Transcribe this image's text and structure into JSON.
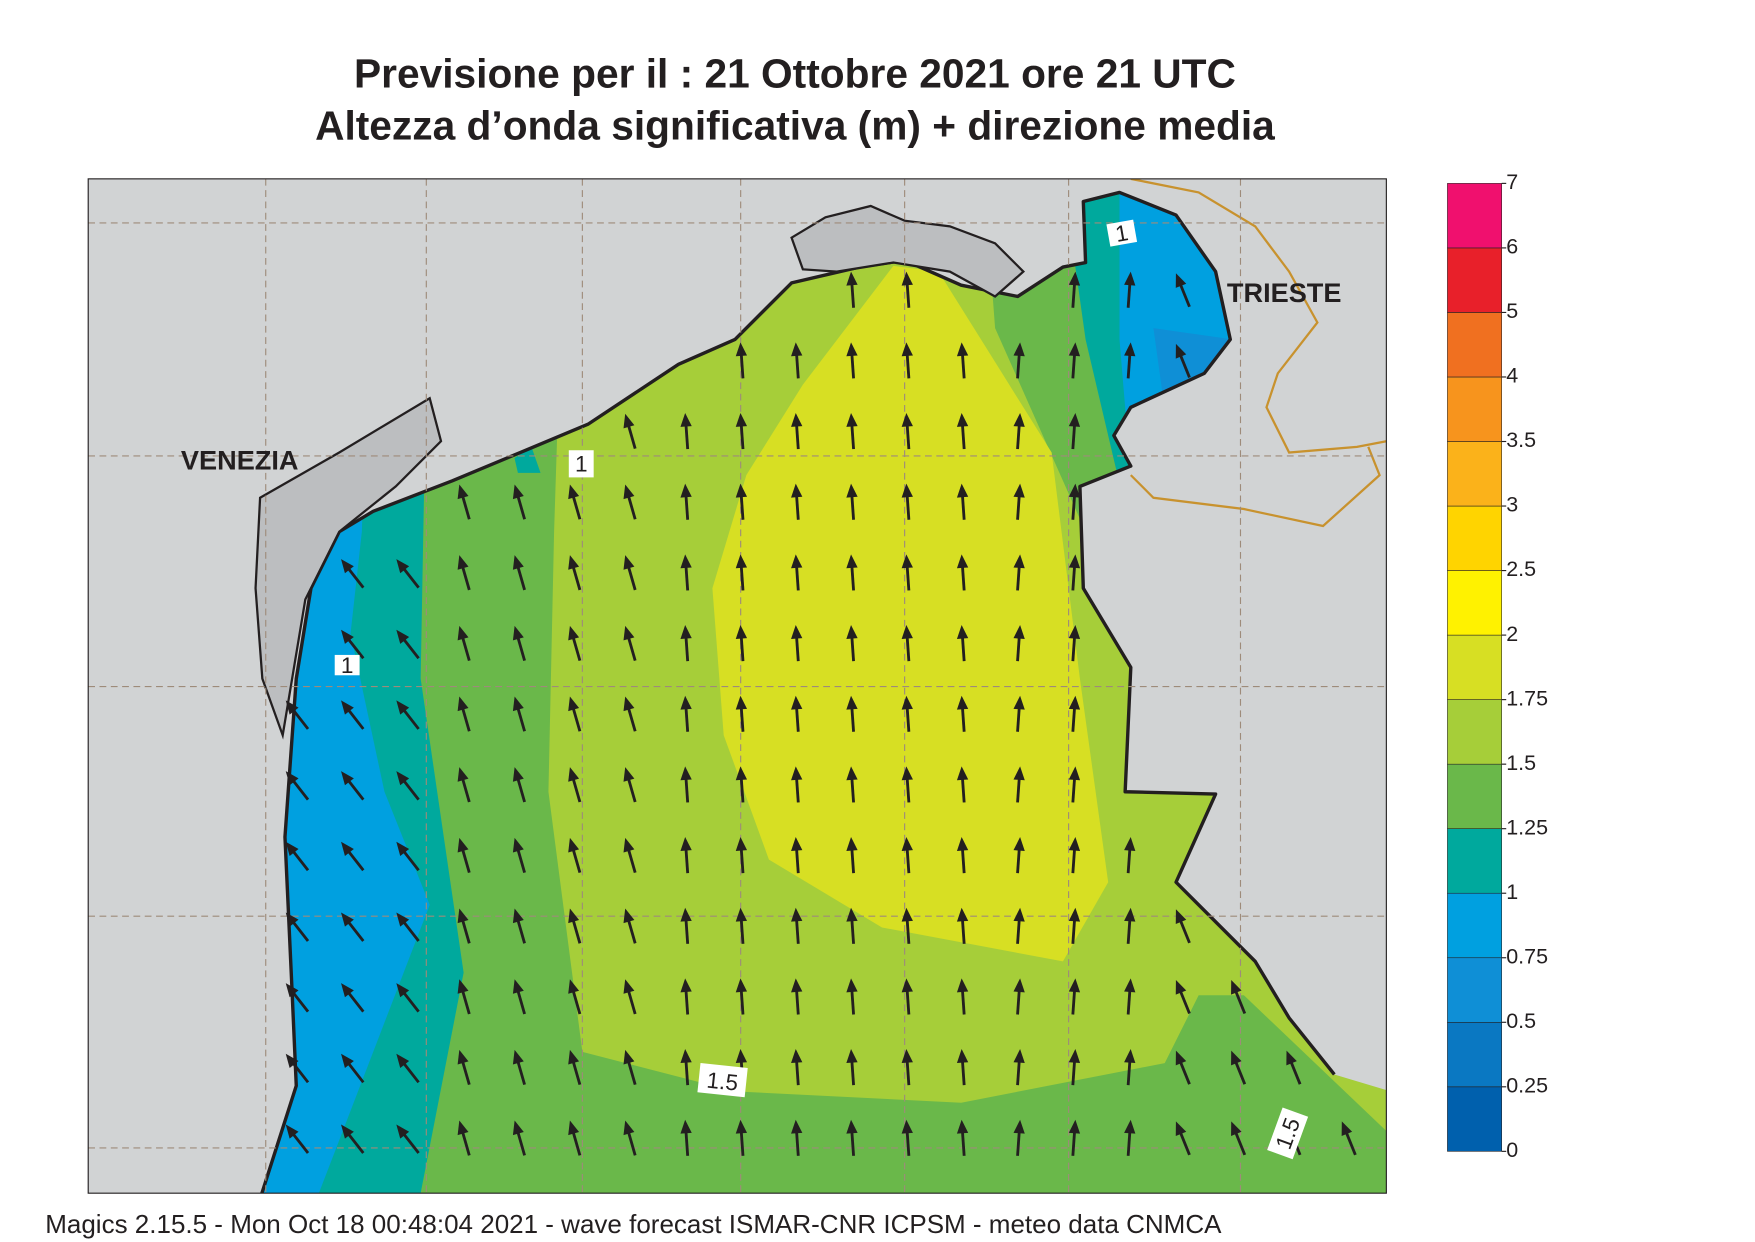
{
  "header": {
    "title_lines": [
      "Previsione per il  :  21  Ottobre  2021   ore 21 UTC",
      "Altezza d’onda significativa (m) + direzione media"
    ]
  },
  "map": {
    "place_labels": [
      "VENEZIA",
      "TRIESTE"
    ],
    "contour_labels": [
      "1.5",
      "1",
      "1",
      "1",
      "1.5"
    ]
  },
  "colorbar": {
    "levels": [
      0,
      0.25,
      0.5,
      0.75,
      1,
      1.25,
      1.5,
      1.75,
      2,
      2.5,
      3,
      3.5,
      4,
      5,
      6,
      7
    ],
    "colors": [
      "#0060ad",
      "#0a78c2",
      "#0f8fd6",
      "#00a0e0",
      "#00a99d",
      "#6ab84a",
      "#a6ce39",
      "#d7df23",
      "#fff200",
      "#ffd400",
      "#fbb21a",
      "#f7941d",
      "#f07020",
      "#e8202a",
      "#f0106e"
    ]
  },
  "footer": "Magics 2.15.5 - Mon Oct 18 00:48:04 2021 - wave forecast  ISMAR-CNR  ICPSM - meteo data   CNMCA"
}
